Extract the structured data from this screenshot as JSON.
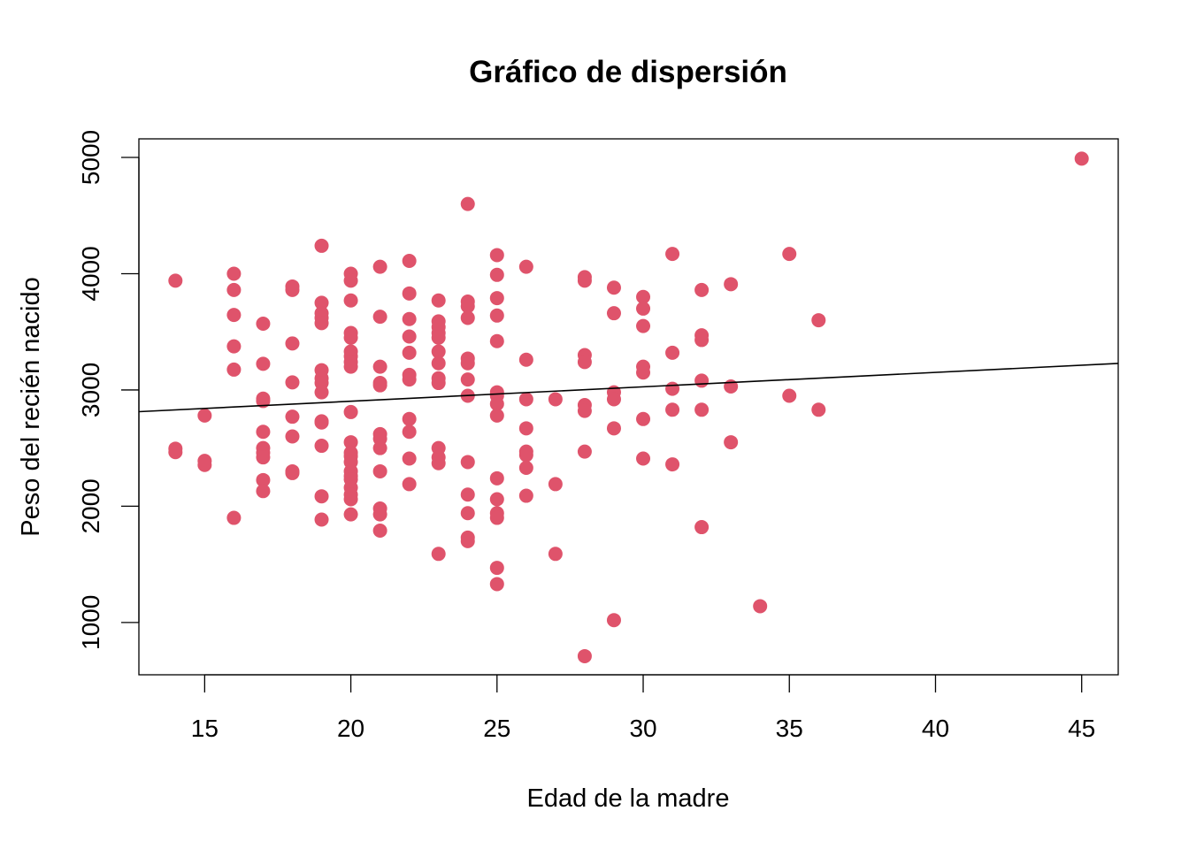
{
  "chart_data": {
    "type": "scatter",
    "title": "Gráfico de dispersión",
    "xlabel": "Edad de la madre",
    "ylabel": "Peso del recién nacido",
    "xlim": [
      12.75,
      46.25
    ],
    "ylim": [
      550,
      5160
    ],
    "x_ticks": [
      15,
      20,
      25,
      30,
      35,
      40,
      45
    ],
    "y_ticks": [
      1000,
      2000,
      3000,
      4000,
      5000
    ],
    "point_color": "#DF536B",
    "line_color": "#000000",
    "grid": false,
    "legend": "none",
    "regression_line": {
      "intercept": 2655,
      "slope": 12.4
    },
    "points": [
      [
        14,
        3940
      ],
      [
        14,
        2495
      ],
      [
        14,
        2465
      ],
      [
        15,
        2780
      ],
      [
        15,
        2390
      ],
      [
        15,
        2355
      ],
      [
        16,
        4000
      ],
      [
        16,
        3860
      ],
      [
        16,
        3645
      ],
      [
        16,
        3375
      ],
      [
        16,
        3175
      ],
      [
        16,
        1900
      ],
      [
        17,
        3570
      ],
      [
        17,
        3225
      ],
      [
        17,
        2925
      ],
      [
        17,
        2905
      ],
      [
        17,
        2640
      ],
      [
        17,
        2500
      ],
      [
        17,
        2460
      ],
      [
        17,
        2420
      ],
      [
        17,
        2225
      ],
      [
        17,
        2130
      ],
      [
        18,
        3890
      ],
      [
        18,
        3860
      ],
      [
        18,
        3400
      ],
      [
        18,
        3065
      ],
      [
        18,
        2770
      ],
      [
        18,
        2600
      ],
      [
        18,
        2300
      ],
      [
        18,
        2285
      ],
      [
        19,
        4240
      ],
      [
        19,
        3750
      ],
      [
        19,
        3660
      ],
      [
        19,
        3620
      ],
      [
        19,
        3575
      ],
      [
        19,
        3170
      ],
      [
        19,
        3100
      ],
      [
        19,
        3060
      ],
      [
        19,
        2980
      ],
      [
        19,
        2730
      ],
      [
        19,
        2720
      ],
      [
        19,
        2520
      ],
      [
        19,
        2085
      ],
      [
        19,
        1885
      ],
      [
        20,
        4000
      ],
      [
        20,
        3940
      ],
      [
        20,
        3770
      ],
      [
        20,
        3490
      ],
      [
        20,
        3450
      ],
      [
        20,
        3330
      ],
      [
        20,
        3290
      ],
      [
        20,
        3240
      ],
      [
        20,
        3200
      ],
      [
        20,
        2810
      ],
      [
        20,
        2550
      ],
      [
        20,
        2460
      ],
      [
        20,
        2430
      ],
      [
        20,
        2380
      ],
      [
        20,
        2300
      ],
      [
        20,
        2260
      ],
      [
        20,
        2230
      ],
      [
        20,
        2160
      ],
      [
        20,
        2100
      ],
      [
        20,
        2060
      ],
      [
        20,
        1930
      ],
      [
        21,
        4060
      ],
      [
        21,
        3630
      ],
      [
        21,
        3200
      ],
      [
        21,
        3060
      ],
      [
        21,
        3040
      ],
      [
        21,
        2620
      ],
      [
        21,
        2580
      ],
      [
        21,
        2500
      ],
      [
        21,
        2300
      ],
      [
        21,
        1980
      ],
      [
        21,
        1930
      ],
      [
        21,
        1790
      ],
      [
        22,
        4110
      ],
      [
        22,
        3830
      ],
      [
        22,
        3610
      ],
      [
        22,
        3460
      ],
      [
        22,
        3320
      ],
      [
        22,
        3130
      ],
      [
        22,
        3090
      ],
      [
        22,
        2750
      ],
      [
        22,
        2640
      ],
      [
        22,
        2410
      ],
      [
        22,
        2190
      ],
      [
        23,
        3770
      ],
      [
        23,
        3590
      ],
      [
        23,
        3540
      ],
      [
        23,
        3490
      ],
      [
        23,
        3450
      ],
      [
        23,
        3330
      ],
      [
        23,
        3230
      ],
      [
        23,
        3100
      ],
      [
        23,
        3060
      ],
      [
        23,
        2500
      ],
      [
        23,
        2420
      ],
      [
        23,
        2370
      ],
      [
        23,
        1590
      ],
      [
        24,
        4600
      ],
      [
        24,
        3760
      ],
      [
        24,
        3720
      ],
      [
        24,
        3620
      ],
      [
        24,
        3270
      ],
      [
        24,
        3230
      ],
      [
        24,
        3090
      ],
      [
        24,
        2950
      ],
      [
        24,
        2380
      ],
      [
        24,
        2100
      ],
      [
        24,
        1940
      ],
      [
        24,
        1730
      ],
      [
        24,
        1700
      ],
      [
        25,
        4160
      ],
      [
        25,
        3990
      ],
      [
        25,
        3790
      ],
      [
        25,
        3640
      ],
      [
        25,
        3420
      ],
      [
        25,
        2980
      ],
      [
        25,
        2950
      ],
      [
        25,
        2880
      ],
      [
        25,
        2780
      ],
      [
        25,
        2240
      ],
      [
        25,
        2060
      ],
      [
        25,
        1940
      ],
      [
        25,
        1900
      ],
      [
        25,
        1470
      ],
      [
        25,
        1330
      ],
      [
        26,
        4060
      ],
      [
        26,
        3260
      ],
      [
        26,
        2920
      ],
      [
        26,
        2670
      ],
      [
        26,
        2470
      ],
      [
        26,
        2440
      ],
      [
        26,
        2330
      ],
      [
        26,
        2090
      ],
      [
        27,
        2920
      ],
      [
        27,
        2190
      ],
      [
        27,
        1590
      ],
      [
        28,
        3970
      ],
      [
        28,
        3940
      ],
      [
        28,
        3300
      ],
      [
        28,
        3240
      ],
      [
        28,
        2870
      ],
      [
        28,
        2820
      ],
      [
        28,
        2470
      ],
      [
        28,
        710
      ],
      [
        29,
        3880
      ],
      [
        29,
        3660
      ],
      [
        29,
        2980
      ],
      [
        29,
        2920
      ],
      [
        29,
        2670
      ],
      [
        29,
        1020
      ],
      [
        30,
        3800
      ],
      [
        30,
        3700
      ],
      [
        30,
        3550
      ],
      [
        30,
        3200
      ],
      [
        30,
        3150
      ],
      [
        30,
        2750
      ],
      [
        30,
        2410
      ],
      [
        31,
        4170
      ],
      [
        31,
        3320
      ],
      [
        31,
        3010
      ],
      [
        31,
        2830
      ],
      [
        31,
        2360
      ],
      [
        32,
        3860
      ],
      [
        32,
        3470
      ],
      [
        32,
        3430
      ],
      [
        32,
        3080
      ],
      [
        32,
        2830
      ],
      [
        32,
        1820
      ],
      [
        33,
        3910
      ],
      [
        33,
        3030
      ],
      [
        33,
        2550
      ],
      [
        34,
        1140
      ],
      [
        35,
        4170
      ],
      [
        35,
        2950
      ],
      [
        36,
        3600
      ],
      [
        36,
        2830
      ],
      [
        45,
        4990
      ]
    ]
  }
}
